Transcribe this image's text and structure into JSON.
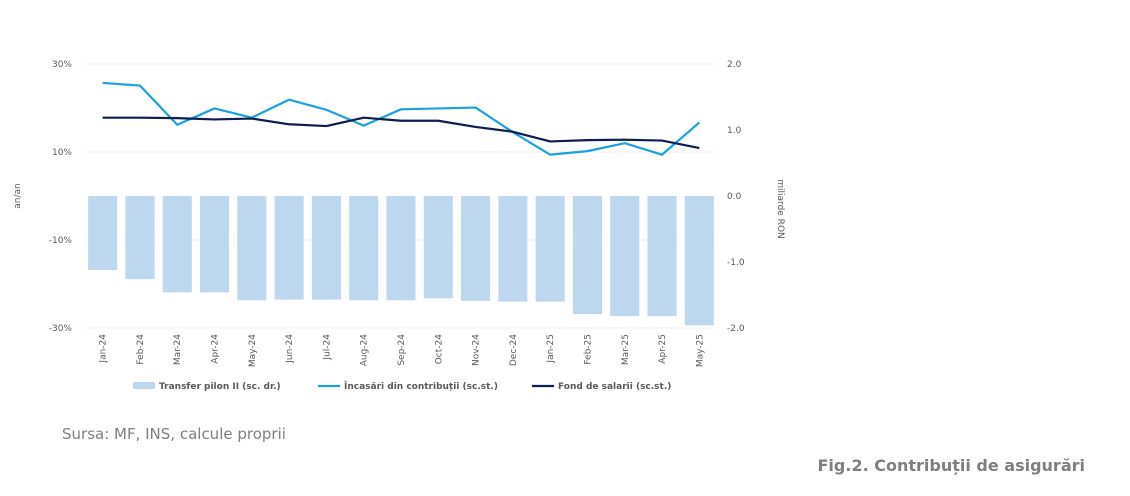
{
  "chart_data": {
    "type": "bar+line",
    "categories": [
      "Jan-24",
      "Feb-24",
      "Mar-24",
      "Apr-24",
      "May-24",
      "Jun-24",
      "Jul-24",
      "Aug-24",
      "Sep-24",
      "Oct-24",
      "Nov-24",
      "Dec-24",
      "Jan-25",
      "Feb-25",
      "Mar-25",
      "Apr-25",
      "May-25"
    ],
    "left_axis": {
      "label": "an/an",
      "ticks": [
        "30%",
        "10%",
        "-10%",
        "-30%"
      ],
      "range": [
        -30,
        30
      ]
    },
    "right_axis": {
      "label": "miliarde RON",
      "ticks": [
        "2.0",
        "1.0",
        "0.0",
        "-1.0",
        "-2.0"
      ],
      "range": [
        -2.0,
        2.0
      ]
    },
    "series": [
      {
        "name": "Transfer pilon II (sc. dr.)",
        "kind": "bar",
        "axis": "right",
        "color": "#bdd7ee",
        "values": [
          -1.12,
          -1.26,
          -1.46,
          -1.46,
          -1.58,
          -1.57,
          -1.57,
          -1.58,
          -1.58,
          -1.55,
          -1.59,
          -1.6,
          -1.6,
          -1.79,
          -1.82,
          -1.82,
          -1.96
        ]
      },
      {
        "name": "Încasări din contribuții (sc.st.)",
        "kind": "line",
        "axis": "left",
        "color": "#1ba1e2",
        "values": [
          25.7,
          25.1,
          16.2,
          19.9,
          17.8,
          21.9,
          19.6,
          16.0,
          19.7,
          19.9,
          20.1,
          14.5,
          9.4,
          10.2,
          12.0,
          9.4,
          16.7
        ]
      },
      {
        "name": "Fond de salarii (sc.st.)",
        "kind": "line",
        "axis": "left",
        "color": "#0b1d51",
        "values": [
          17.8,
          17.8,
          17.7,
          17.4,
          17.6,
          16.3,
          15.9,
          17.8,
          17.1,
          17.1,
          15.7,
          14.6,
          12.4,
          12.7,
          12.8,
          12.6,
          10.9
        ]
      }
    ]
  },
  "source_text": "Sursa: MF, INS, calcule proprii",
  "figure_title": "Fig.2. Contribuții de asigurări"
}
